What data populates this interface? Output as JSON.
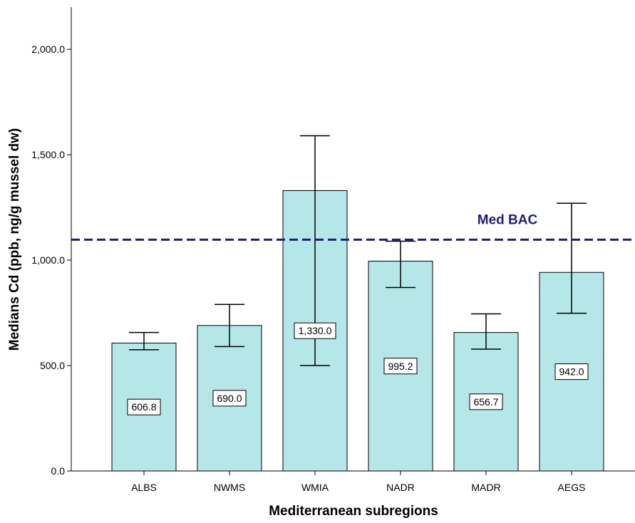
{
  "chart_data": {
    "type": "bar",
    "xlabel": "Mediterranean subregions",
    "ylabel": "Medians Cd (ppb, ng/g mussel dw)",
    "categories": [
      "ALBS",
      "NWMS",
      "WMIA",
      "NADR",
      "MADR",
      "AEGS"
    ],
    "values": [
      606.8,
      690.0,
      1330.0,
      995.2,
      656.7,
      942.0
    ],
    "value_labels": [
      "606.8",
      "690.0",
      "1,330.0",
      "995.2",
      "656.7",
      "942.0"
    ],
    "error_bars": [
      {
        "low": 575,
        "high": 657
      },
      {
        "low": 590,
        "high": 790
      },
      {
        "low": 500,
        "high": 1590
      },
      {
        "low": 870,
        "high": 1090
      },
      {
        "low": 578,
        "high": 745
      },
      {
        "low": 748,
        "high": 1270
      }
    ],
    "yticks": [
      0,
      500,
      1000,
      1500,
      2000
    ],
    "ytick_labels": [
      "0.0",
      "500.0",
      "1,000.0",
      "1,500.0",
      "2,000.0"
    ],
    "ylim": [
      0,
      2200
    ],
    "reference_line": {
      "label": "Med BAC",
      "value": 1097,
      "color": "#1f1f7a"
    },
    "bar_color": "#b5e6e8",
    "grid": false
  }
}
